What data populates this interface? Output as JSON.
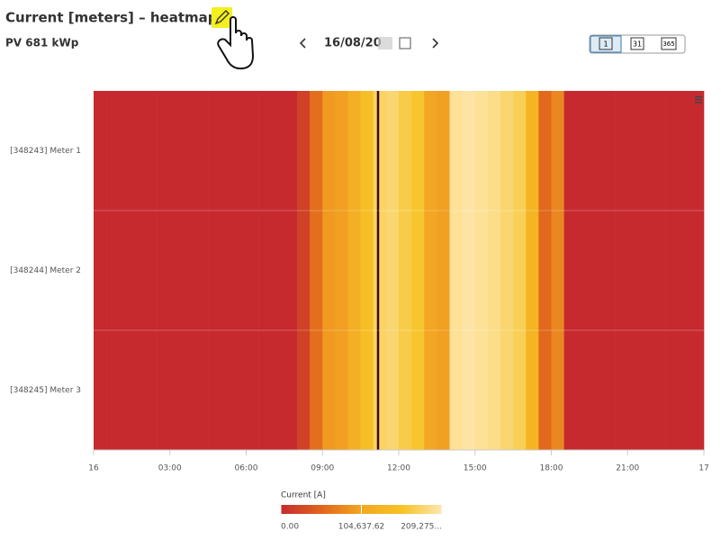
{
  "header": {
    "title": "Current [meters] – heatmap",
    "subtitle": "PV 681 kWp",
    "date": "16/08/20",
    "view_buttons": [
      "1",
      "31",
      "365"
    ]
  },
  "chart_data": {
    "type": "heatmap",
    "x": [
      0,
      0.5,
      1,
      1.5,
      2,
      2.5,
      3,
      3.5,
      4,
      4.5,
      5,
      5.5,
      6,
      6.5,
      7,
      7.5,
      8,
      8.5,
      9,
      9.5,
      10,
      10.5,
      11,
      11.5,
      12,
      12.5,
      13,
      13.5,
      14,
      14.5,
      15,
      15.5,
      16,
      16.5,
      17,
      17.5,
      18,
      18.5,
      19,
      19.5,
      20,
      20.5,
      21,
      21.5,
      22,
      22.5,
      23,
      23.5
    ],
    "xlim": [
      0,
      24
    ],
    "xticks": [
      {
        "value": 0,
        "label": "16"
      },
      {
        "value": 3,
        "label": "03:00"
      },
      {
        "value": 6,
        "label": "06:00"
      },
      {
        "value": 9,
        "label": "09:00"
      },
      {
        "value": 12,
        "label": "12:00"
      },
      {
        "value": 15,
        "label": "15:00"
      },
      {
        "value": 18,
        "label": "18:00"
      },
      {
        "value": 21,
        "label": "21:00"
      },
      {
        "value": 24,
        "label": "17"
      }
    ],
    "rows": [
      {
        "name": "[348243] Meter 1",
        "values": [
          0,
          0,
          0,
          0,
          0,
          0,
          0,
          0,
          0,
          0,
          0,
          0,
          0,
          0,
          0,
          0,
          20000,
          60000,
          95000,
          100000,
          120000,
          150000,
          180000,
          185000,
          170000,
          160000,
          105000,
          100000,
          200000,
          205000,
          200000,
          195000,
          185000,
          175000,
          130000,
          55000,
          80000,
          0,
          0,
          0,
          0,
          0,
          0,
          0,
          0,
          0,
          0,
          0
        ]
      },
      {
        "name": "[348244] Meter 2",
        "values": [
          0,
          0,
          0,
          0,
          0,
          0,
          0,
          0,
          0,
          0,
          0,
          0,
          0,
          0,
          0,
          0,
          20000,
          60000,
          95000,
          100000,
          120000,
          150000,
          180000,
          185000,
          170000,
          160000,
          105000,
          100000,
          200000,
          205000,
          200000,
          195000,
          185000,
          175000,
          130000,
          55000,
          80000,
          0,
          0,
          0,
          0,
          0,
          0,
          0,
          0,
          0,
          0,
          0
        ]
      },
      {
        "name": "[348245] Meter 3",
        "values": [
          0,
          0,
          0,
          0,
          0,
          0,
          0,
          0,
          0,
          0,
          0,
          0,
          0,
          0,
          0,
          0,
          20000,
          60000,
          95000,
          100000,
          120000,
          150000,
          180000,
          185000,
          170000,
          160000,
          105000,
          100000,
          200000,
          205000,
          200000,
          195000,
          185000,
          175000,
          130000,
          55000,
          80000,
          0,
          0,
          0,
          0,
          0,
          0,
          0,
          0,
          0,
          0,
          0
        ]
      }
    ],
    "colorbar": {
      "title": "Current [A]",
      "range": [
        0,
        209275.24
      ],
      "colors": [
        "#c62a2f",
        "#e0651c",
        "#f3a623",
        "#f7c325",
        "#fde7b0"
      ],
      "ticks": [
        {
          "value": 0,
          "label": "0.00"
        },
        {
          "value": 104637.62,
          "label": "104,637.62"
        },
        {
          "value": 209275.24,
          "label": "209,275..."
        }
      ]
    }
  }
}
